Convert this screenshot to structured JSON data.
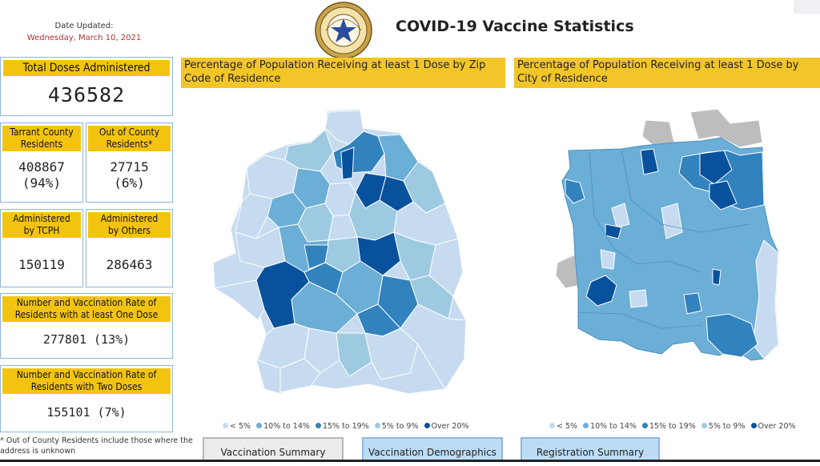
{
  "header": {
    "date_label": "Date Updated:",
    "date_value": "Wednesday, March 10, 2021",
    "title": "COVID-19 Vaccine Statistics"
  },
  "stats": {
    "total": {
      "label": "Total Doses Administered",
      "value": "436582"
    },
    "tarrant": {
      "label_line1": "Tarrant County",
      "label_line2": "Residents",
      "value": "408867",
      "pct": "(94%)"
    },
    "out_county": {
      "label_line1": "Out of County",
      "label_line2": "Residents*",
      "value": "27715",
      "pct": "(6%)"
    },
    "tcph": {
      "label_line1": "Administered",
      "label_line2": "by TCPH",
      "value": "150119"
    },
    "others": {
      "label_line1": "Administered",
      "label_line2": "by Others",
      "value": "286463"
    },
    "one_dose": {
      "label_line1": "Number and Vaccination Rate of",
      "label_line2": "Residents with at least One Dose",
      "value": "277801 (13%)"
    },
    "two_dose": {
      "label_line1": "Number and Vaccination Rate of",
      "label_line2": "Residents with Two Doses",
      "value": "155101 (7%)"
    }
  },
  "footnote": "* Out of County Residents include those where the address is unknown",
  "maps": {
    "zip": {
      "title": "Percentage of Population Receiving at least 1 Dose by Zip Code of Residence"
    },
    "city": {
      "title": "Percentage of Population Receiving at least 1 Dose by City of Residence"
    }
  },
  "legend": [
    {
      "label": "< 5%",
      "color": "#c6dbef"
    },
    {
      "label": "10% to 14%",
      "color": "#6baed6"
    },
    {
      "label": "15% to 19%",
      "color": "#3182bd"
    },
    {
      "label": "5% to 9%",
      "color": "#9ecae1"
    },
    {
      "label": "Over 20%",
      "color": "#08519c"
    }
  ],
  "buttons": {
    "summary": "Vaccination Summary",
    "demographics": "Vaccination Demographics",
    "registration": "Registration Summary"
  },
  "colors": {
    "header_yellow": "#f3c40f",
    "card_border": "#8fb3d6",
    "date_red": "#b03030"
  }
}
